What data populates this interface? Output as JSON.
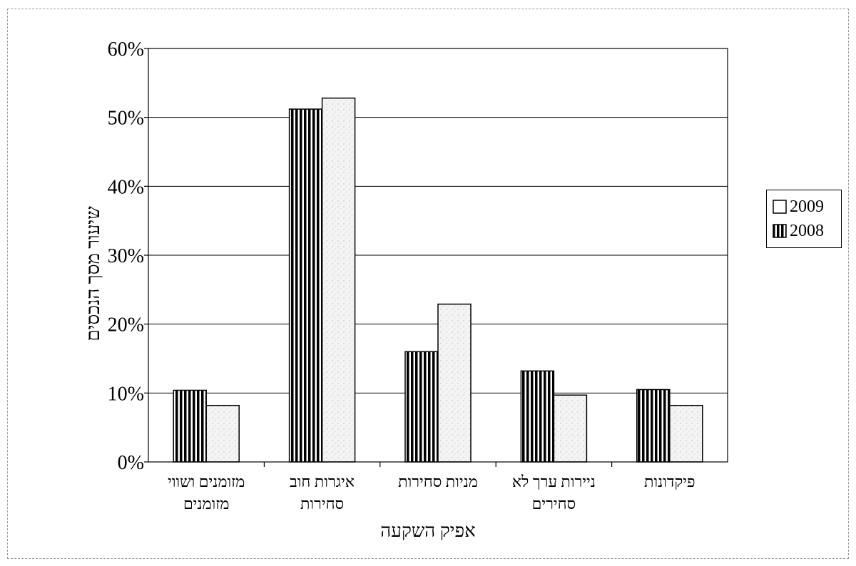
{
  "chart_data": {
    "type": "bar",
    "title": "",
    "xlabel": "אפיק השקעה",
    "ylabel": "שיעור מסך הנכסים",
    "ylim": [
      0,
      60
    ],
    "y_ticks": [
      "0%",
      "10%",
      "20%",
      "30%",
      "40%",
      "50%",
      "60%"
    ],
    "categories": [
      [
        "מזומנים ושווי",
        "מזומנים"
      ],
      [
        "איגרות חוב",
        "סחירות"
      ],
      [
        "מניות סחירות"
      ],
      [
        "ניירות ערך לא",
        "סחירים"
      ],
      [
        "פיקדונות"
      ]
    ],
    "series": [
      {
        "name": "2008",
        "values": [
          10.4,
          51.2,
          16.0,
          13.2,
          10.5
        ],
        "pattern": "vertical-stripes",
        "color": "#000000"
      },
      {
        "name": "2009",
        "values": [
          8.2,
          52.8,
          22.9,
          9.7,
          8.2
        ],
        "pattern": "light-stipple",
        "color": "#f2f2f2"
      }
    ],
    "legend": [
      "2009",
      "2008"
    ],
    "legend_position": "right",
    "grid": true
  }
}
